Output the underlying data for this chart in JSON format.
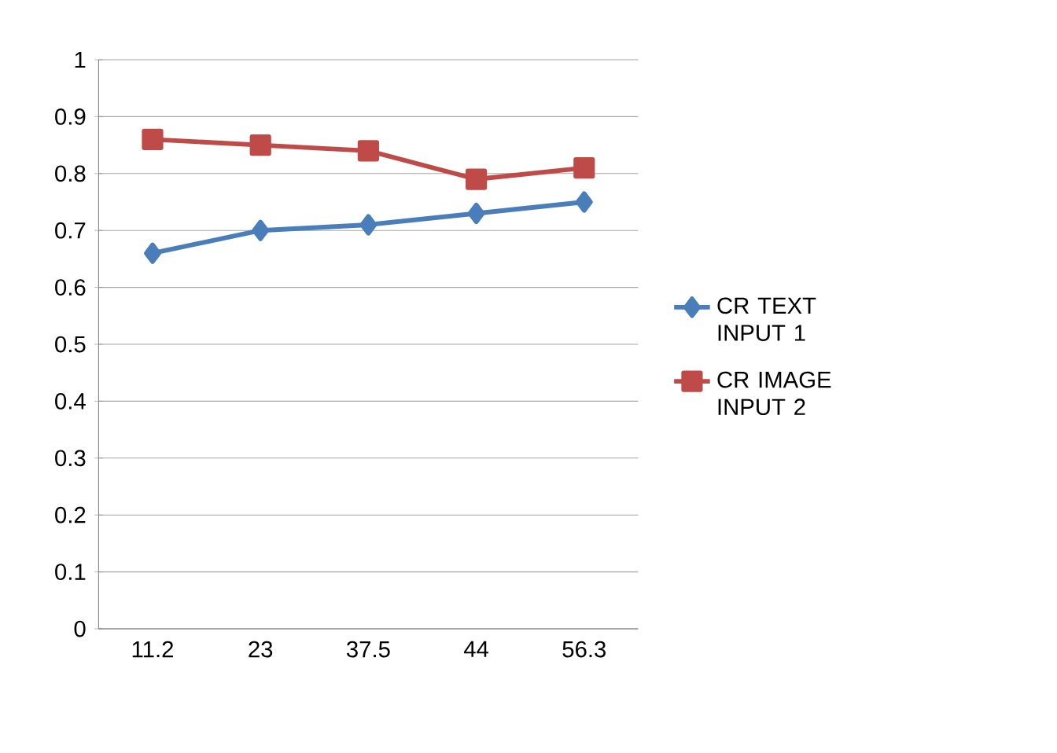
{
  "chart_data": {
    "type": "line",
    "categories": [
      "11.2",
      "23",
      "37.5",
      "44",
      "56.3"
    ],
    "series": [
      {
        "name": "CR TEXT INPUT 1",
        "color": "#4a7ebb",
        "marker": "diamond",
        "values": [
          0.66,
          0.7,
          0.71,
          0.73,
          0.75
        ]
      },
      {
        "name": "CR IMAGE INPUT 2",
        "color": "#be4b48",
        "marker": "square",
        "values": [
          0.86,
          0.85,
          0.84,
          0.79,
          0.81
        ]
      }
    ],
    "ylim": [
      0,
      1
    ],
    "yticks": [
      0,
      0.1,
      0.2,
      0.3,
      0.4,
      0.5,
      0.6,
      0.7,
      0.8,
      0.9,
      1
    ],
    "grid": "y",
    "legend": "right",
    "line_style": "solid"
  }
}
